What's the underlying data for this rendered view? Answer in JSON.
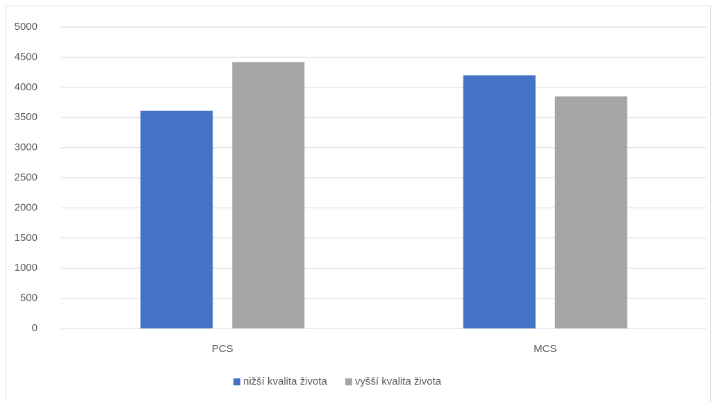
{
  "chart_data": {
    "type": "bar",
    "categories": [
      "PCS",
      "MCS"
    ],
    "series": [
      {
        "name": "nižší kvalita života",
        "color": "#4472c4",
        "values": [
          3610,
          4200
        ]
      },
      {
        "name": "vyšší kvalita života",
        "color": "#a5a5a5",
        "values": [
          4420,
          3850
        ]
      }
    ],
    "ylim": [
      0,
      5000
    ],
    "yticks": [
      0,
      500,
      1000,
      1500,
      2000,
      2500,
      3000,
      3500,
      4000,
      4500,
      5000
    ],
    "grid": true,
    "legend": "bottom"
  }
}
